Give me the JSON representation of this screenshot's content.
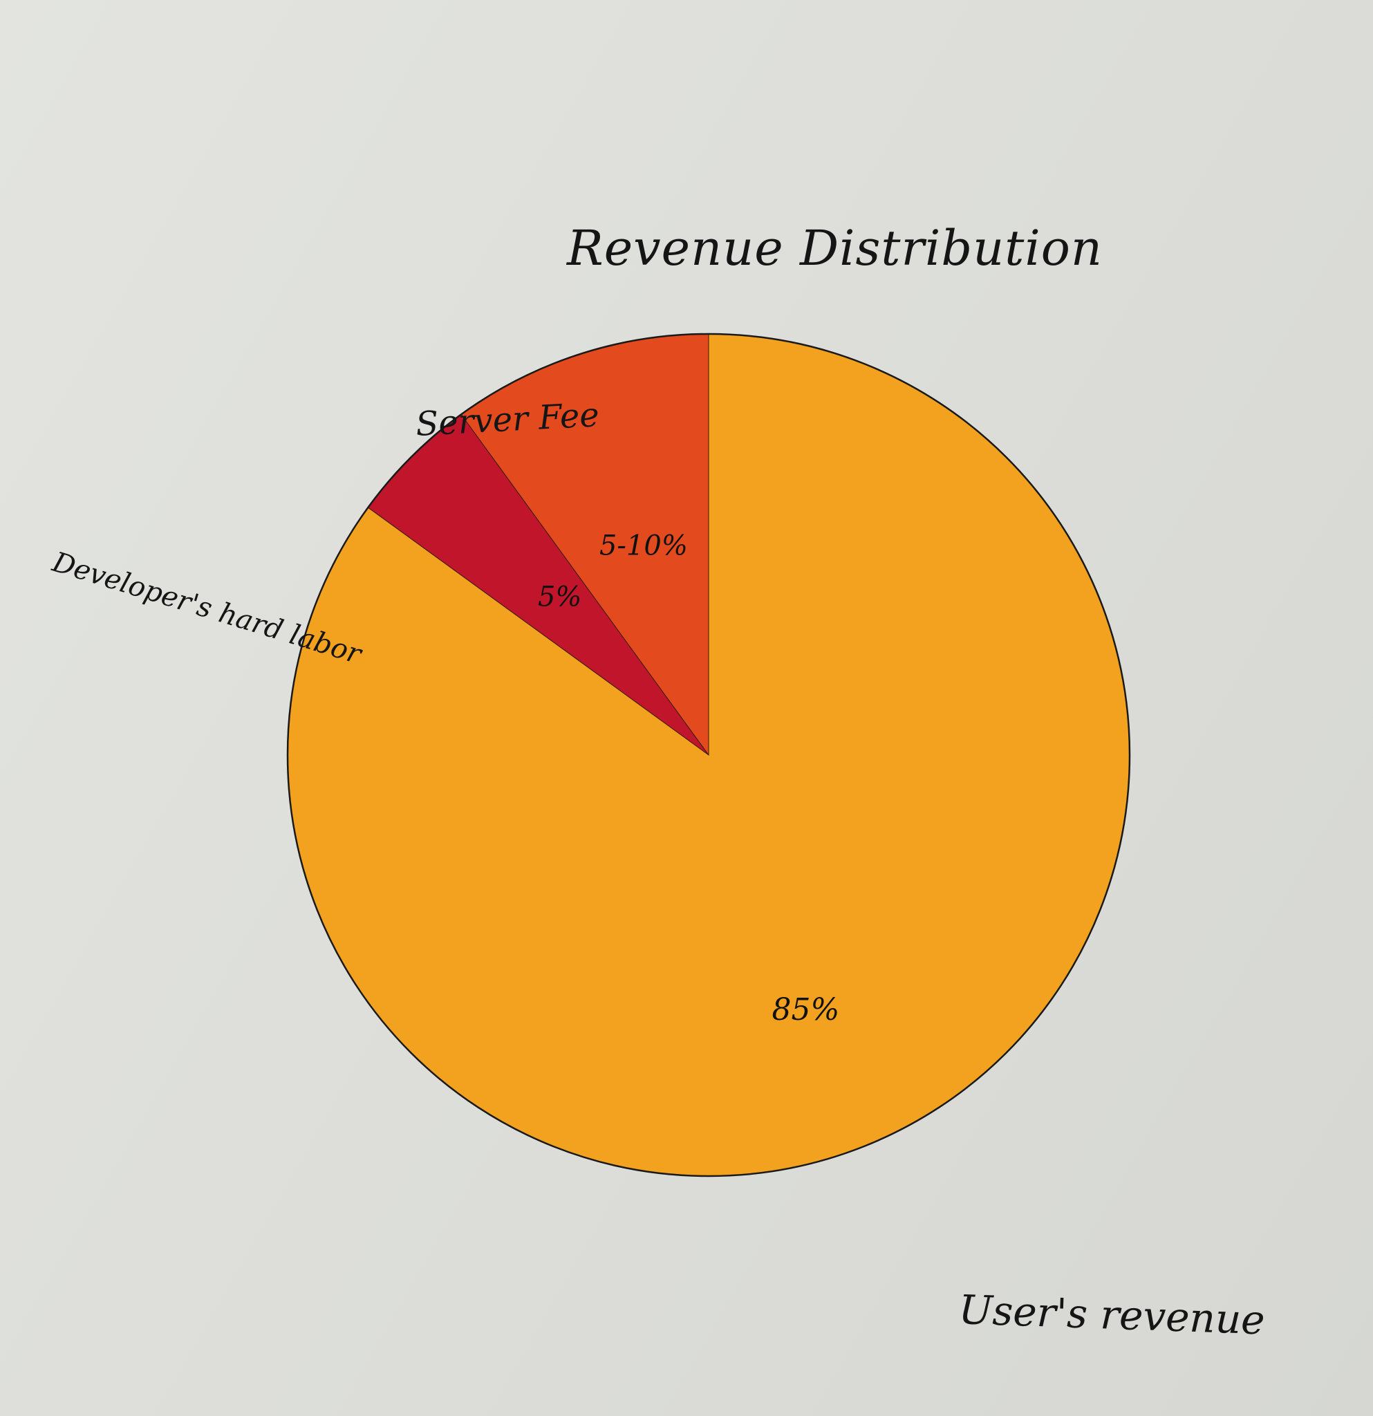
{
  "chart_data": {
    "type": "pie",
    "title": "Revenue Distribution",
    "slices": [
      {
        "label": "User's revenue",
        "value_label": "85%",
        "value": 85,
        "color": "#f3a21f"
      },
      {
        "label": "Server Fee",
        "value_label": "5-10%",
        "value": 10,
        "color": "#e34a1d"
      },
      {
        "label": "Developer's hard labor",
        "value_label": "5%",
        "value": 5,
        "color": "#c0152a"
      }
    ],
    "outline_color": "#1a1a1a"
  }
}
